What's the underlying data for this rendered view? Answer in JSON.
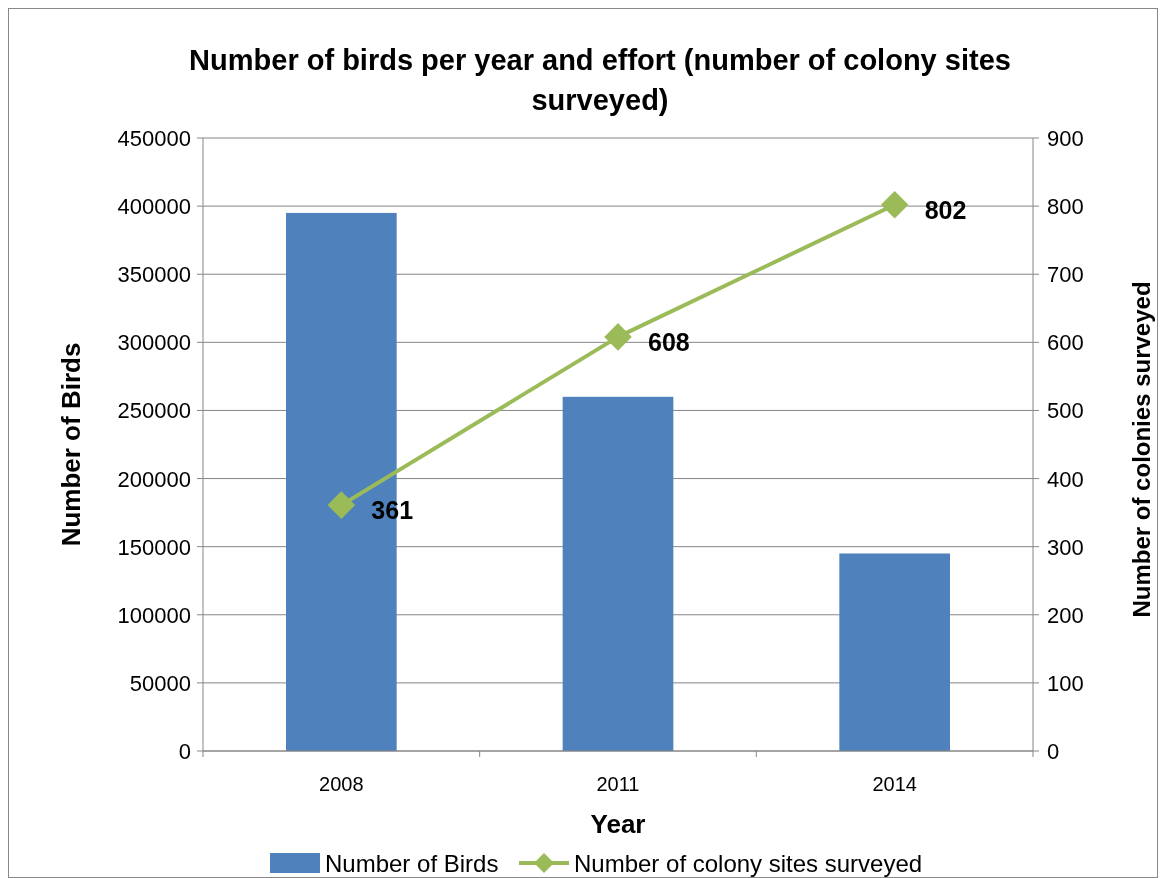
{
  "chart_data": {
    "type": "bar",
    "title": "Number of birds per year and effort (number of colony sites surveyed)",
    "xlabel": "Year",
    "ylabel": "Number of Birds",
    "y2label": "Number of colonies surveyed",
    "categories": [
      "2008",
      "2011",
      "2014"
    ],
    "series": [
      {
        "name": "Number of Birds",
        "color": "#4f81bd",
        "values": [
          395000,
          260000,
          145000
        ]
      },
      {
        "name": "Number of colony sites surveyed",
        "type": "line",
        "axis": "y2",
        "color": "#9bbb59",
        "marker": "diamond",
        "values": [
          361,
          608,
          802
        ],
        "data_labels": true
      }
    ],
    "ylim": [
      0,
      450000
    ],
    "yticks": [
      0,
      50000,
      100000,
      150000,
      200000,
      250000,
      300000,
      350000,
      400000,
      450000
    ],
    "y2lim": [
      0,
      900
    ],
    "y2ticks": [
      0,
      100,
      200,
      300,
      400,
      500,
      600,
      700,
      800,
      900
    ],
    "grid": "y",
    "legend": "bottom"
  }
}
